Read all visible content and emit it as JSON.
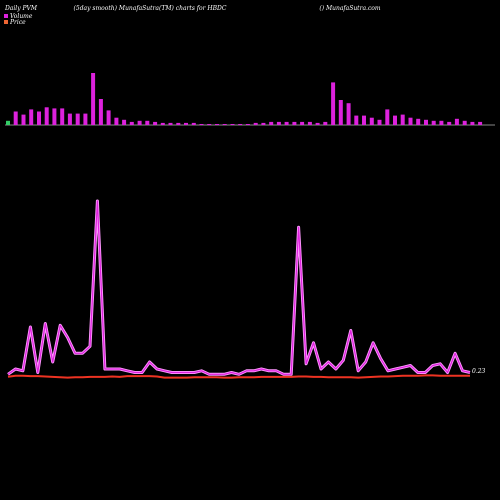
{
  "header": {
    "left": "Daily PVM",
    "center": "(5day smooth) MunafaSutra(TM) charts for HBDC",
    "right": "() MunafaSutra.com"
  },
  "legend": {
    "volume_label": "Volume",
    "price_label": "Price",
    "volume_color": "#dd22dd",
    "price_color": "#ee6633"
  },
  "chart_data": [
    {
      "type": "bar",
      "title": "",
      "series": [
        {
          "name": "Volume",
          "values": [
            4,
            13,
            10,
            15,
            13,
            17,
            16,
            16,
            11,
            11,
            11,
            50,
            25,
            14,
            7,
            5,
            3,
            4,
            4,
            3,
            2,
            2,
            2,
            2,
            2,
            1,
            1,
            1,
            1,
            1,
            1,
            1,
            2,
            2,
            3,
            3,
            3,
            3,
            3,
            3,
            2,
            3,
            41,
            24,
            21,
            9,
            9,
            7,
            5,
            15,
            9,
            10,
            7,
            6,
            5,
            4,
            4,
            3,
            6,
            4,
            3,
            3
          ],
          "colors_note": "all bars magenta except first (green)"
        }
      ],
      "first_bar_color": "#33cc66",
      "bar_color": "#dd22dd",
      "baseline_color": "#888888"
    },
    {
      "type": "line",
      "title": "",
      "series": [
        {
          "name": "Volume",
          "color": "#dd22dd",
          "values": [
            1,
            4,
            3,
            28,
            2,
            30,
            8,
            29,
            22,
            13,
            13,
            17,
            100,
            4,
            4,
            4,
            3,
            2,
            2,
            8,
            4,
            3,
            2,
            2,
            2,
            2,
            3,
            1,
            1,
            1,
            2,
            1,
            3,
            3,
            4,
            3,
            3,
            1,
            1,
            85,
            7,
            19,
            4,
            8,
            4,
            9,
            26,
            3,
            8,
            19,
            10,
            3,
            4,
            5,
            6,
            2,
            2,
            6,
            7,
            2,
            13,
            3,
            2
          ]
        },
        {
          "name": "Price",
          "color": "#ee3322",
          "values": [
            1,
            1.8,
            1.8,
            1.5,
            1.5,
            1.2,
            0.9,
            0.6,
            0.3,
            0.6,
            0.6,
            0.9,
            0.9,
            0.9,
            1.2,
            0.9,
            1.5,
            1.5,
            1.5,
            1.5,
            1.2,
            0.3,
            0.3,
            0.3,
            0.3,
            0.6,
            0.6,
            0.6,
            0.6,
            0.3,
            0.3,
            0.6,
            0.6,
            0.6,
            0.9,
            0.9,
            0.9,
            0.9,
            0.9,
            1.2,
            1.2,
            0.9,
            0.9,
            0.6,
            0.6,
            0.6,
            0.6,
            0.3,
            0.6,
            0.9,
            1.2,
            1.2,
            1.5,
            1.8,
            1.8,
            1.8,
            2.1,
            2.1,
            1.8,
            1.8,
            1.8,
            1.8,
            1.8
          ]
        }
      ],
      "end_label": "0.23",
      "end_label_color": "#ffffff"
    }
  ]
}
